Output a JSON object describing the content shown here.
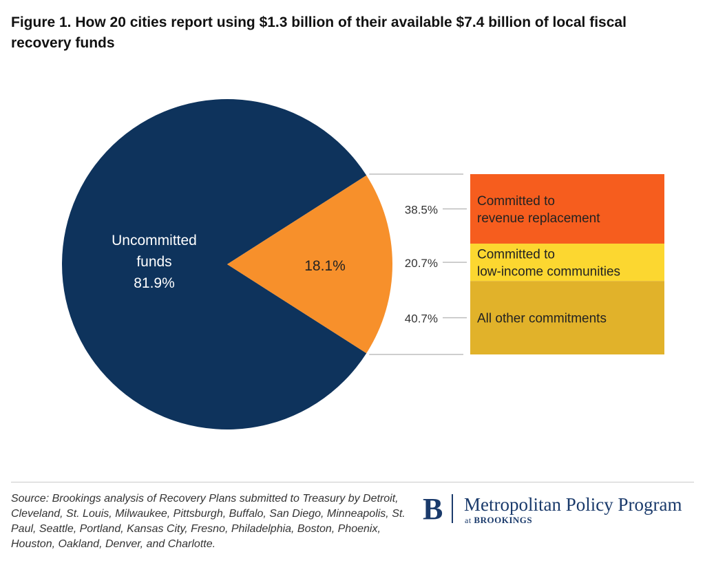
{
  "title": "Figure 1. How 20 cities report using $1.3 billion of their available $7.4 billion of local fiscal recovery funds",
  "chart_data": [
    {
      "type": "pie",
      "slices": [
        {
          "label_lines": [
            "Uncommitted",
            "funds",
            "81.9%"
          ],
          "value": 81.9,
          "color": "#0e335c",
          "text_color": "#ffffff"
        },
        {
          "label_lines": [
            "18.1%"
          ],
          "value": 18.1,
          "color": "#f7902b",
          "text_color": "#222222"
        }
      ]
    },
    {
      "type": "bar",
      "orientation": "stacked-vertical",
      "categories": [
        "Committed to revenue replacement",
        "Committed to low-income communities",
        "All other commitments"
      ],
      "label_lines": [
        [
          "Committed to",
          "revenue replacement"
        ],
        [
          "Committed to",
          "low-income communities"
        ],
        [
          "All other commitments"
        ]
      ],
      "values": [
        38.5,
        20.7,
        40.7
      ],
      "value_labels": [
        "38.5%",
        "20.7%",
        "40.7%"
      ],
      "colors": [
        "#f65d1e",
        "#fcd730",
        "#e1b22a"
      ]
    }
  ],
  "source": "Source: Brookings analysis of Recovery Plans submitted to Treasury by Detroit, Cleveland, St. Louis, Milwaukee, Pittsburgh, Buffalo, San Diego, Minneapolis, St. Paul, Seattle, Portland, Kansas City, Fresno, Philadelphia, Boston, Phoenix, Houston, Oakland, Denver, and Charlotte.",
  "logo": {
    "mark": "B",
    "name": "Metropolitan Policy Program",
    "sub_at": "at",
    "sub_org": "BROOKINGS"
  }
}
